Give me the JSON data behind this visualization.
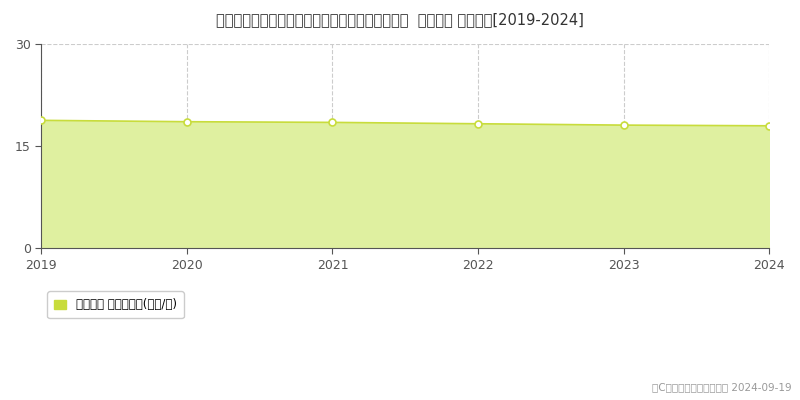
{
  "title": "静岡県駿東郡長泉町上長窪字アラク２９０番１８  基準地価 地価推移[2019-2024]",
  "years": [
    2019,
    2020,
    2021,
    2022,
    2023,
    2024
  ],
  "values": [
    18.8,
    18.6,
    18.5,
    18.3,
    18.1,
    18.0
  ],
  "ylim": [
    0,
    30
  ],
  "yticks": [
    0,
    15,
    30
  ],
  "line_color": "#c8dc3c",
  "fill_color": "#dff0a0",
  "marker_color": "#ffffff",
  "marker_edge_color": "#c8dc3c",
  "grid_color": "#cccccc",
  "axis_color": "#555555",
  "bg_color": "#ffffff",
  "title_fontsize": 10.5,
  "legend_label": "基準地価 平均坪単価(万円/坪)",
  "legend_color": "#c8dc3c",
  "copyright_text": "（C）土地価格ドットコム 2024-09-19"
}
